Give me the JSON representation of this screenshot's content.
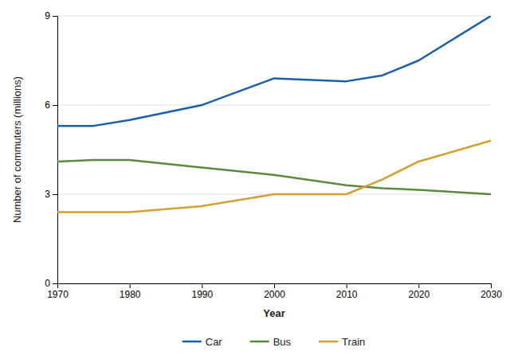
{
  "chart_data": {
    "type": "line",
    "xlabel": "Year",
    "ylabel": "Number of commuters (millions)",
    "x": [
      1970,
      1975,
      1980,
      1990,
      2000,
      2010,
      2015,
      2020,
      2030
    ],
    "series": [
      {
        "name": "Car",
        "color": "#1a5fa8",
        "values": [
          5.3,
          5.3,
          5.5,
          6.0,
          6.9,
          6.8,
          7.0,
          7.5,
          9.0
        ]
      },
      {
        "name": "Bus",
        "color": "#5a8a3c",
        "values": [
          4.1,
          4.15,
          4.15,
          3.9,
          3.65,
          3.3,
          3.2,
          3.15,
          3.0
        ]
      },
      {
        "name": "Train",
        "color": "#d4a030",
        "values": [
          2.4,
          2.4,
          2.4,
          2.6,
          3.0,
          3.0,
          3.5,
          4.1,
          4.8
        ]
      }
    ],
    "xlim": [
      1970,
      2030
    ],
    "xticks": [
      1970,
      1980,
      1990,
      2000,
      2010,
      2020,
      2030
    ],
    "ylim": [
      0,
      9
    ],
    "yticks": [
      0,
      3,
      6,
      9
    ],
    "grid": true,
    "legend": "bottom"
  }
}
